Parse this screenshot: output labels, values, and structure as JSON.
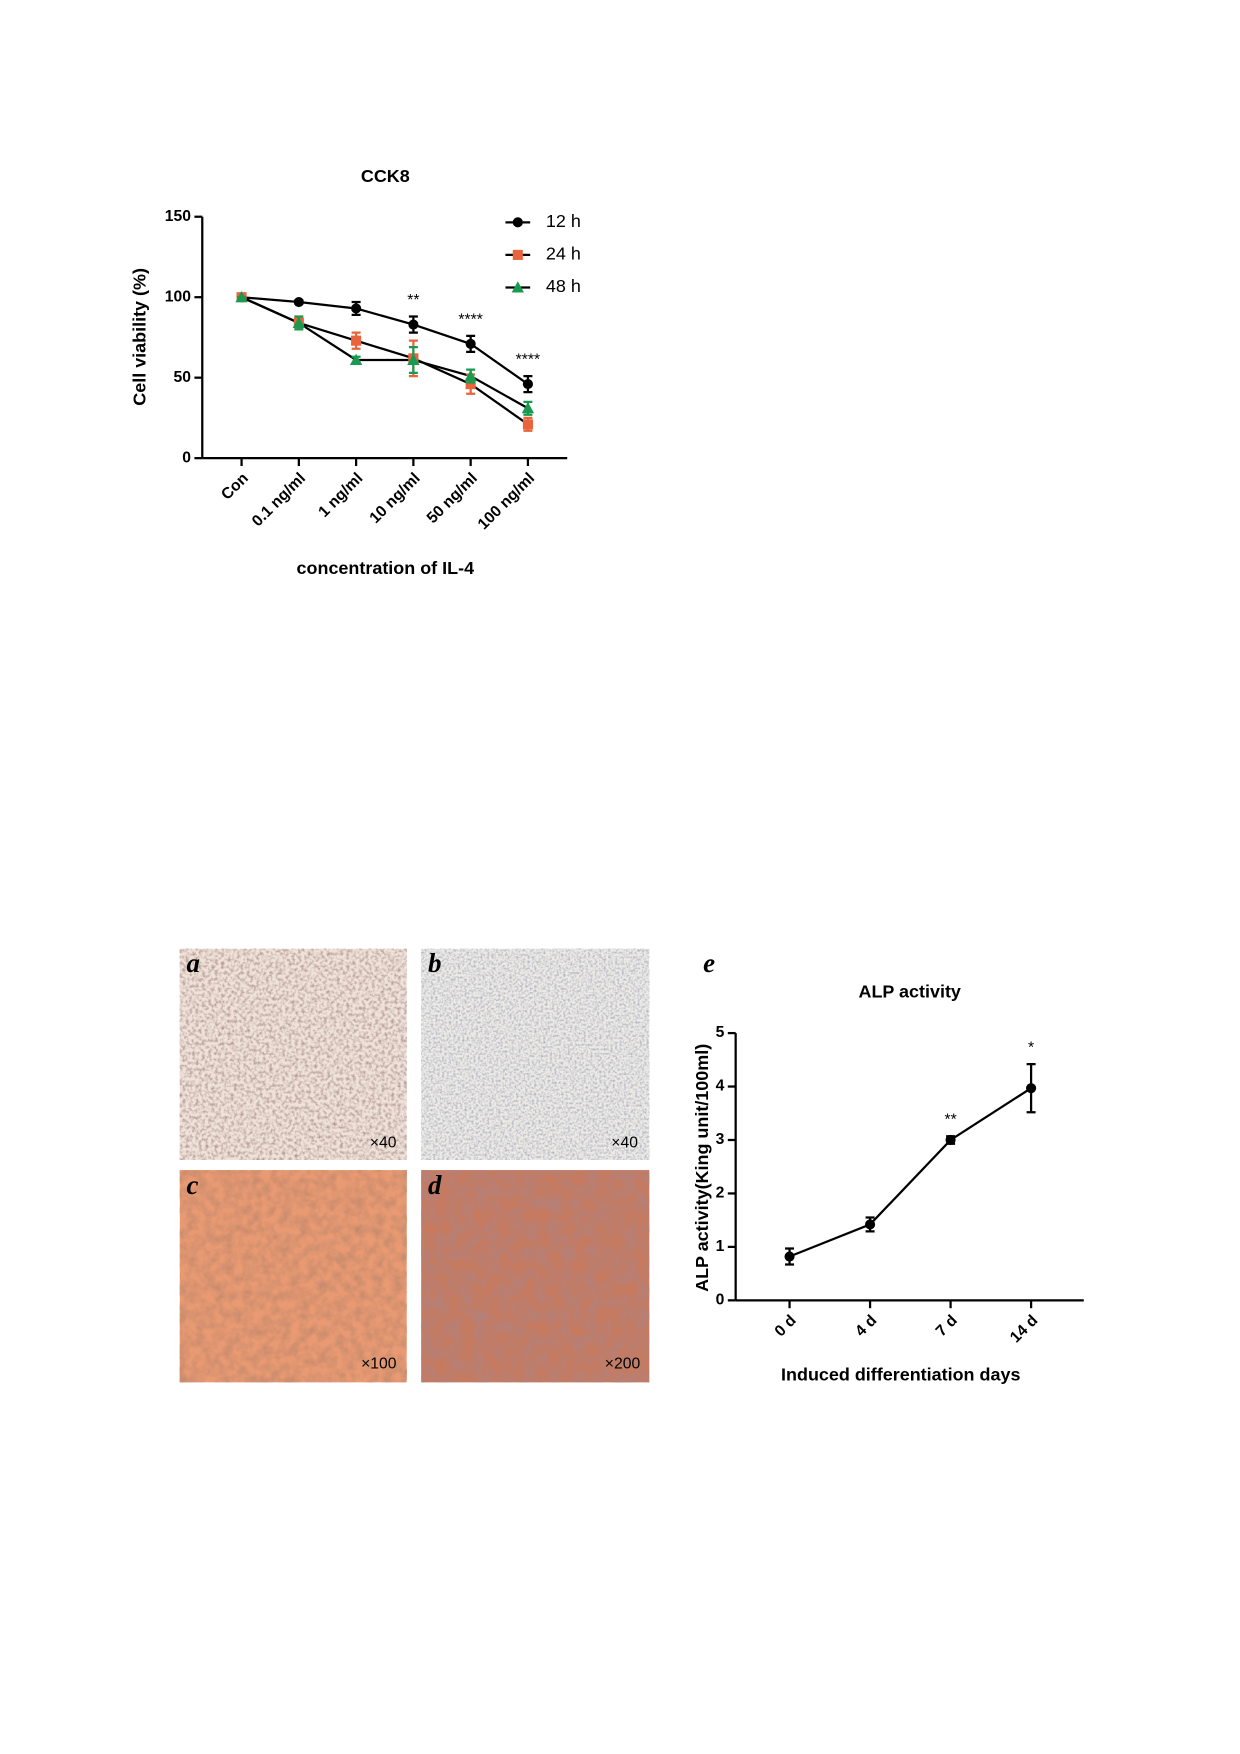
{
  "chart_data": [
    {
      "type": "line",
      "title": "CCK8",
      "x_label": "concentration of IL-4",
      "y_label": "Cell viability (%)",
      "categories": [
        "Con",
        "0.1 ng/ml",
        "1 ng/ml",
        "10 ng/ml",
        "50 ng/ml",
        "100 ng/ml"
      ],
      "series": [
        {
          "name": "12 h",
          "color": "#000000",
          "marker": "circle",
          "values": [
            100,
            97,
            93,
            83,
            71,
            46
          ],
          "errors": [
            0,
            1,
            4,
            5,
            5,
            5
          ]
        },
        {
          "name": "24 h",
          "color": "#e8643c",
          "marker": "square",
          "values": [
            100,
            84,
            73,
            62,
            46,
            21
          ],
          "errors": [
            0,
            3,
            5,
            11,
            6,
            4
          ]
        },
        {
          "name": "48 h",
          "color": "#1a9a50",
          "marker": "triangle",
          "values": [
            100,
            84,
            61,
            61,
            51,
            31
          ],
          "errors": [
            0,
            4,
            2,
            8,
            4,
            4
          ]
        }
      ],
      "annotations": [
        {
          "category": "10 ng/ml",
          "text": "**"
        },
        {
          "category": "50 ng/ml",
          "text": "****"
        },
        {
          "category": "100 ng/ml",
          "text": "****"
        }
      ],
      "ylim": [
        0,
        150
      ],
      "yticks": [
        0,
        50,
        100,
        150
      ],
      "legend": "upper right"
    },
    {
      "type": "line",
      "panel_label": "e",
      "title": "ALP activity",
      "x_label": "Induced differentiation days",
      "y_label": "ALP activity(King unit/100ml)",
      "categories": [
        "0 d",
        "4 d",
        "7 d",
        "14 d"
      ],
      "series": [
        {
          "color": "#000000",
          "marker": "circle",
          "values": [
            0.82,
            1.42,
            3.0,
            3.97
          ],
          "errors": [
            0.15,
            0.13,
            0.07,
            0.45
          ]
        }
      ],
      "annotations": [
        {
          "category": "7 d",
          "text": "**"
        },
        {
          "category": "14 d",
          "text": "*"
        }
      ],
      "ylim": [
        0,
        5
      ],
      "yticks": [
        0,
        1,
        2,
        3,
        4,
        5
      ]
    }
  ],
  "figure": {
    "panels": [
      {
        "label": "a",
        "magnification": "×40"
      },
      {
        "label": "b",
        "magnification": "×40"
      },
      {
        "label": "c",
        "magnification": "×100"
      },
      {
        "label": "d",
        "magnification": "×200"
      }
    ]
  }
}
